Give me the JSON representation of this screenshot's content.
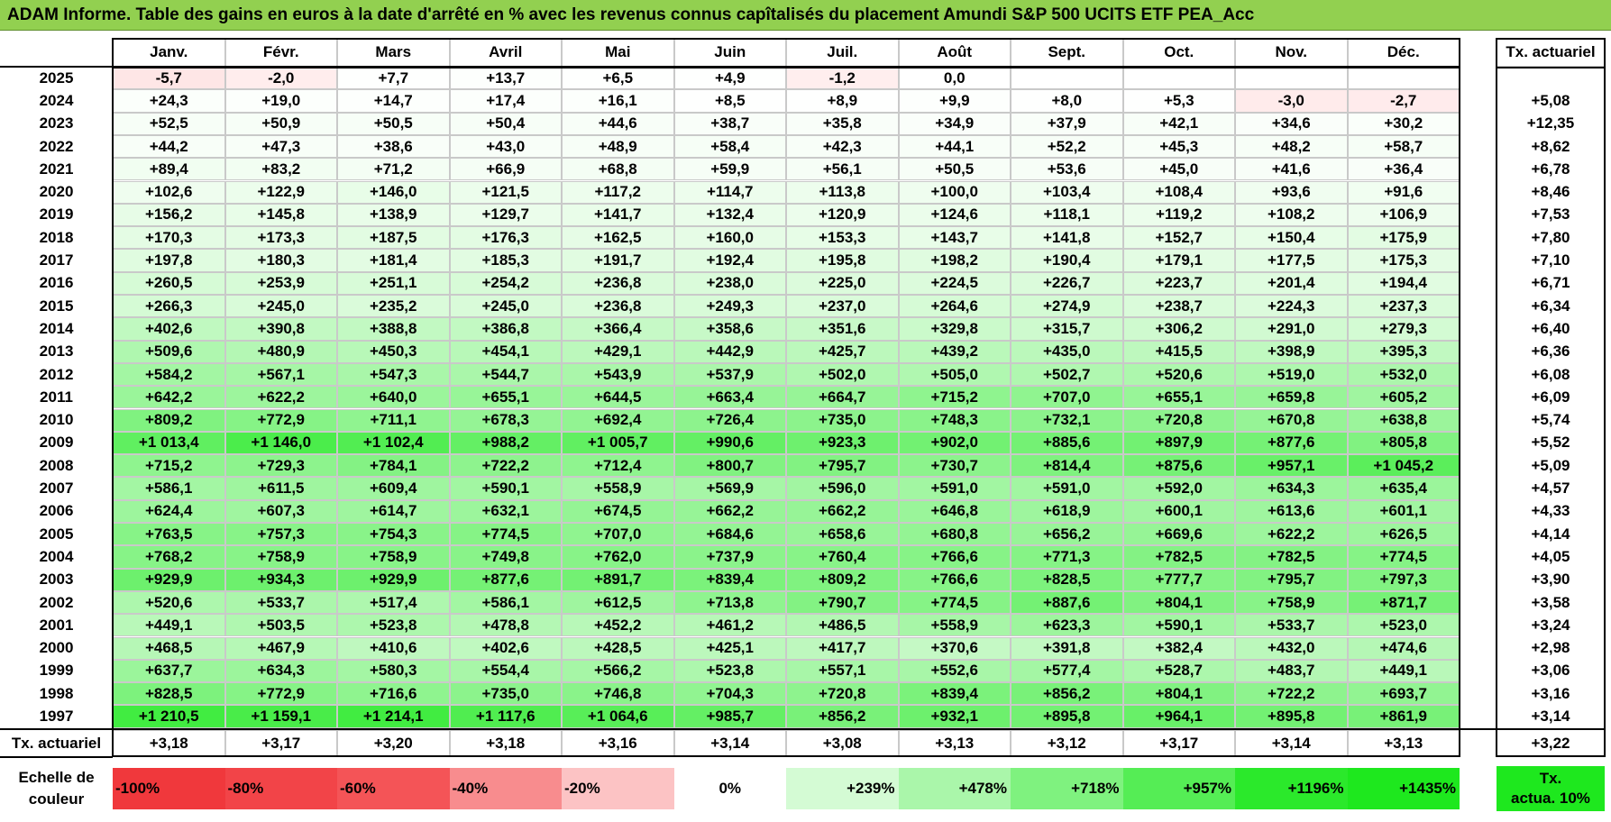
{
  "title": "ADAM Informe. Table des gains en euros à la date d'arrêté en % avec les revenus connus capîtalisés du placement Amundi S&P 500 UCITS ETF PEA_Acc",
  "months": [
    "Janv.",
    "Févr.",
    "Mars",
    "Avril",
    "Mai",
    "Juin",
    "Juil.",
    "Août",
    "Sept.",
    "Oct.",
    "Nov.",
    "Déc."
  ],
  "rate_header": "Tx. actuariel",
  "rows": [
    {
      "year": "2025",
      "values": [
        "-5,7",
        "-2,0",
        "+7,7",
        "+13,7",
        "+6,5",
        "+4,9",
        "-1,2",
        "0,0",
        "",
        "",
        "",
        ""
      ],
      "rate": ""
    },
    {
      "year": "2024",
      "values": [
        "+24,3",
        "+19,0",
        "+14,7",
        "+17,4",
        "+16,1",
        "+8,5",
        "+8,9",
        "+9,9",
        "+8,0",
        "+5,3",
        "-3,0",
        "-2,7"
      ],
      "rate": "+5,08"
    },
    {
      "year": "2023",
      "values": [
        "+52,5",
        "+50,9",
        "+50,5",
        "+50,4",
        "+44,6",
        "+38,7",
        "+35,8",
        "+34,9",
        "+37,9",
        "+42,1",
        "+34,6",
        "+30,2"
      ],
      "rate": "+12,35"
    },
    {
      "year": "2022",
      "values": [
        "+44,2",
        "+47,3",
        "+38,6",
        "+43,0",
        "+48,9",
        "+58,4",
        "+42,3",
        "+44,1",
        "+52,2",
        "+45,3",
        "+48,2",
        "+58,7"
      ],
      "rate": "+8,62"
    },
    {
      "year": "2021",
      "values": [
        "+89,4",
        "+83,2",
        "+71,2",
        "+66,9",
        "+68,8",
        "+59,9",
        "+56,1",
        "+50,5",
        "+53,6",
        "+45,0",
        "+41,6",
        "+36,4"
      ],
      "rate": "+6,78"
    },
    {
      "year": "2020",
      "values": [
        "+102,6",
        "+122,9",
        "+146,0",
        "+121,5",
        "+117,2",
        "+114,7",
        "+113,8",
        "+100,0",
        "+103,4",
        "+108,4",
        "+93,6",
        "+91,6"
      ],
      "rate": "+8,46"
    },
    {
      "year": "2019",
      "values": [
        "+156,2",
        "+145,8",
        "+138,9",
        "+129,7",
        "+141,7",
        "+132,4",
        "+120,9",
        "+124,6",
        "+118,1",
        "+119,2",
        "+108,2",
        "+106,9"
      ],
      "rate": "+7,53"
    },
    {
      "year": "2018",
      "values": [
        "+170,3",
        "+173,3",
        "+187,5",
        "+176,3",
        "+162,5",
        "+160,0",
        "+153,3",
        "+143,7",
        "+141,8",
        "+152,7",
        "+150,4",
        "+175,9"
      ],
      "rate": "+7,80"
    },
    {
      "year": "2017",
      "values": [
        "+197,8",
        "+180,3",
        "+181,4",
        "+185,3",
        "+191,7",
        "+192,4",
        "+195,8",
        "+198,2",
        "+190,4",
        "+179,1",
        "+177,5",
        "+175,3"
      ],
      "rate": "+7,10"
    },
    {
      "year": "2016",
      "values": [
        "+260,5",
        "+253,9",
        "+251,1",
        "+254,2",
        "+236,8",
        "+238,0",
        "+225,0",
        "+224,5",
        "+226,7",
        "+223,7",
        "+201,4",
        "+194,4"
      ],
      "rate": "+6,71"
    },
    {
      "year": "2015",
      "values": [
        "+266,3",
        "+245,0",
        "+235,2",
        "+245,0",
        "+236,8",
        "+249,3",
        "+237,0",
        "+264,6",
        "+274,9",
        "+238,7",
        "+224,3",
        "+237,3"
      ],
      "rate": "+6,34"
    },
    {
      "year": "2014",
      "values": [
        "+402,6",
        "+390,8",
        "+388,8",
        "+386,8",
        "+366,4",
        "+358,6",
        "+351,6",
        "+329,8",
        "+315,7",
        "+306,2",
        "+291,0",
        "+279,3"
      ],
      "rate": "+6,40"
    },
    {
      "year": "2013",
      "values": [
        "+509,6",
        "+480,9",
        "+450,3",
        "+454,1",
        "+429,1",
        "+442,9",
        "+425,7",
        "+439,2",
        "+435,0",
        "+415,5",
        "+398,9",
        "+395,3"
      ],
      "rate": "+6,36"
    },
    {
      "year": "2012",
      "values": [
        "+584,2",
        "+567,1",
        "+547,3",
        "+544,7",
        "+543,9",
        "+537,9",
        "+502,0",
        "+505,0",
        "+502,7",
        "+520,6",
        "+519,0",
        "+532,0"
      ],
      "rate": "+6,08"
    },
    {
      "year": "2011",
      "values": [
        "+642,2",
        "+622,2",
        "+640,0",
        "+655,1",
        "+644,5",
        "+663,4",
        "+664,7",
        "+715,2",
        "+707,0",
        "+655,1",
        "+659,8",
        "+605,2"
      ],
      "rate": "+6,09"
    },
    {
      "year": "2010",
      "values": [
        "+809,2",
        "+772,9",
        "+711,1",
        "+678,3",
        "+692,4",
        "+726,4",
        "+735,0",
        "+748,3",
        "+732,1",
        "+720,8",
        "+670,8",
        "+638,8"
      ],
      "rate": "+5,74"
    },
    {
      "year": "2009",
      "values": [
        "+1 013,4",
        "+1 146,0",
        "+1 102,4",
        "+988,2",
        "+1 005,7",
        "+990,6",
        "+923,3",
        "+902,0",
        "+885,6",
        "+897,9",
        "+877,6",
        "+805,8"
      ],
      "rate": "+5,52"
    },
    {
      "year": "2008",
      "values": [
        "+715,2",
        "+729,3",
        "+784,1",
        "+722,2",
        "+712,4",
        "+800,7",
        "+795,7",
        "+730,7",
        "+814,4",
        "+875,6",
        "+957,1",
        "+1 045,2"
      ],
      "rate": "+5,09"
    },
    {
      "year": "2007",
      "values": [
        "+586,1",
        "+611,5",
        "+609,4",
        "+590,1",
        "+558,9",
        "+569,9",
        "+596,0",
        "+591,0",
        "+591,0",
        "+592,0",
        "+634,3",
        "+635,4"
      ],
      "rate": "+4,57"
    },
    {
      "year": "2006",
      "values": [
        "+624,4",
        "+607,3",
        "+614,7",
        "+632,1",
        "+674,5",
        "+662,2",
        "+662,2",
        "+646,8",
        "+618,9",
        "+600,1",
        "+613,6",
        "+601,1"
      ],
      "rate": "+4,33"
    },
    {
      "year": "2005",
      "values": [
        "+763,5",
        "+757,3",
        "+754,3",
        "+774,5",
        "+707,0",
        "+684,6",
        "+658,6",
        "+680,8",
        "+656,2",
        "+669,6",
        "+622,2",
        "+626,5"
      ],
      "rate": "+4,14"
    },
    {
      "year": "2004",
      "values": [
        "+768,2",
        "+758,9",
        "+758,9",
        "+749,8",
        "+762,0",
        "+737,9",
        "+760,4",
        "+766,6",
        "+771,3",
        "+782,5",
        "+782,5",
        "+774,5"
      ],
      "rate": "+4,05"
    },
    {
      "year": "2003",
      "values": [
        "+929,9",
        "+934,3",
        "+929,9",
        "+877,6",
        "+891,7",
        "+839,4",
        "+809,2",
        "+766,6",
        "+828,5",
        "+777,7",
        "+795,7",
        "+797,3"
      ],
      "rate": "+3,90"
    },
    {
      "year": "2002",
      "values": [
        "+520,6",
        "+533,7",
        "+517,4",
        "+586,1",
        "+612,5",
        "+713,8",
        "+790,7",
        "+774,5",
        "+887,6",
        "+804,1",
        "+758,9",
        "+871,7"
      ],
      "rate": "+3,58"
    },
    {
      "year": "2001",
      "values": [
        "+449,1",
        "+503,5",
        "+523,8",
        "+478,8",
        "+452,2",
        "+461,2",
        "+486,5",
        "+558,9",
        "+623,3",
        "+590,1",
        "+533,7",
        "+523,0"
      ],
      "rate": "+3,24"
    },
    {
      "year": "2000",
      "values": [
        "+468,5",
        "+467,9",
        "+410,6",
        "+402,6",
        "+428,5",
        "+425,1",
        "+417,7",
        "+370,6",
        "+391,8",
        "+382,4",
        "+432,0",
        "+474,6"
      ],
      "rate": "+2,98"
    },
    {
      "year": "1999",
      "values": [
        "+637,7",
        "+634,3",
        "+580,3",
        "+554,4",
        "+566,2",
        "+523,8",
        "+557,1",
        "+552,6",
        "+577,4",
        "+528,7",
        "+483,7",
        "+449,1"
      ],
      "rate": "+3,06"
    },
    {
      "year": "1998",
      "values": [
        "+828,5",
        "+772,9",
        "+716,6",
        "+735,0",
        "+746,8",
        "+704,3",
        "+720,8",
        "+839,4",
        "+856,2",
        "+804,1",
        "+722,2",
        "+693,7"
      ],
      "rate": "+3,16"
    },
    {
      "year": "1997",
      "values": [
        "+1 210,5",
        "+1 159,1",
        "+1 214,1",
        "+1 117,6",
        "+1 064,6",
        "+985,7",
        "+856,2",
        "+932,1",
        "+895,8",
        "+964,1",
        "+895,8",
        "+861,9"
      ],
      "rate": "+3,14"
    }
  ],
  "summary": {
    "label": "Tx. actuariel",
    "values": [
      "+3,18",
      "+3,17",
      "+3,20",
      "+3,18",
      "+3,16",
      "+3,14",
      "+3,08",
      "+3,13",
      "+3,12",
      "+3,17",
      "+3,14",
      "+3,13"
    ],
    "rate": "+3,22"
  },
  "scale": {
    "label_line1": "Echelle de",
    "label_line2": "couleur",
    "items": [
      {
        "text": "-100%",
        "color": "#f0383c"
      },
      {
        "text": "-80%",
        "color": "#f24448"
      },
      {
        "text": "-60%",
        "color": "#f45457"
      },
      {
        "text": "-40%",
        "color": "#f88c8e"
      },
      {
        "text": "-20%",
        "color": "#fcc3c4"
      },
      {
        "text": "0%",
        "color": "#ffffff"
      },
      {
        "text": "+239%",
        "color": "#d4fbd4"
      },
      {
        "text": "+478%",
        "color": "#aaf6aa"
      },
      {
        "text": "+718%",
        "color": "#7ff27f"
      },
      {
        "text": "+957%",
        "color": "#55ed55"
      },
      {
        "text": "+1196%",
        "color": "#2be92b"
      },
      {
        "text": "+1435%",
        "color": "#1ee81e"
      }
    ],
    "tx_line1": "Tx.",
    "tx_line2": "actua. 10%",
    "tx_color": "#1ee81e"
  },
  "colors": {
    "title_bar": "#92d050",
    "max_positive_value": 1435
  }
}
